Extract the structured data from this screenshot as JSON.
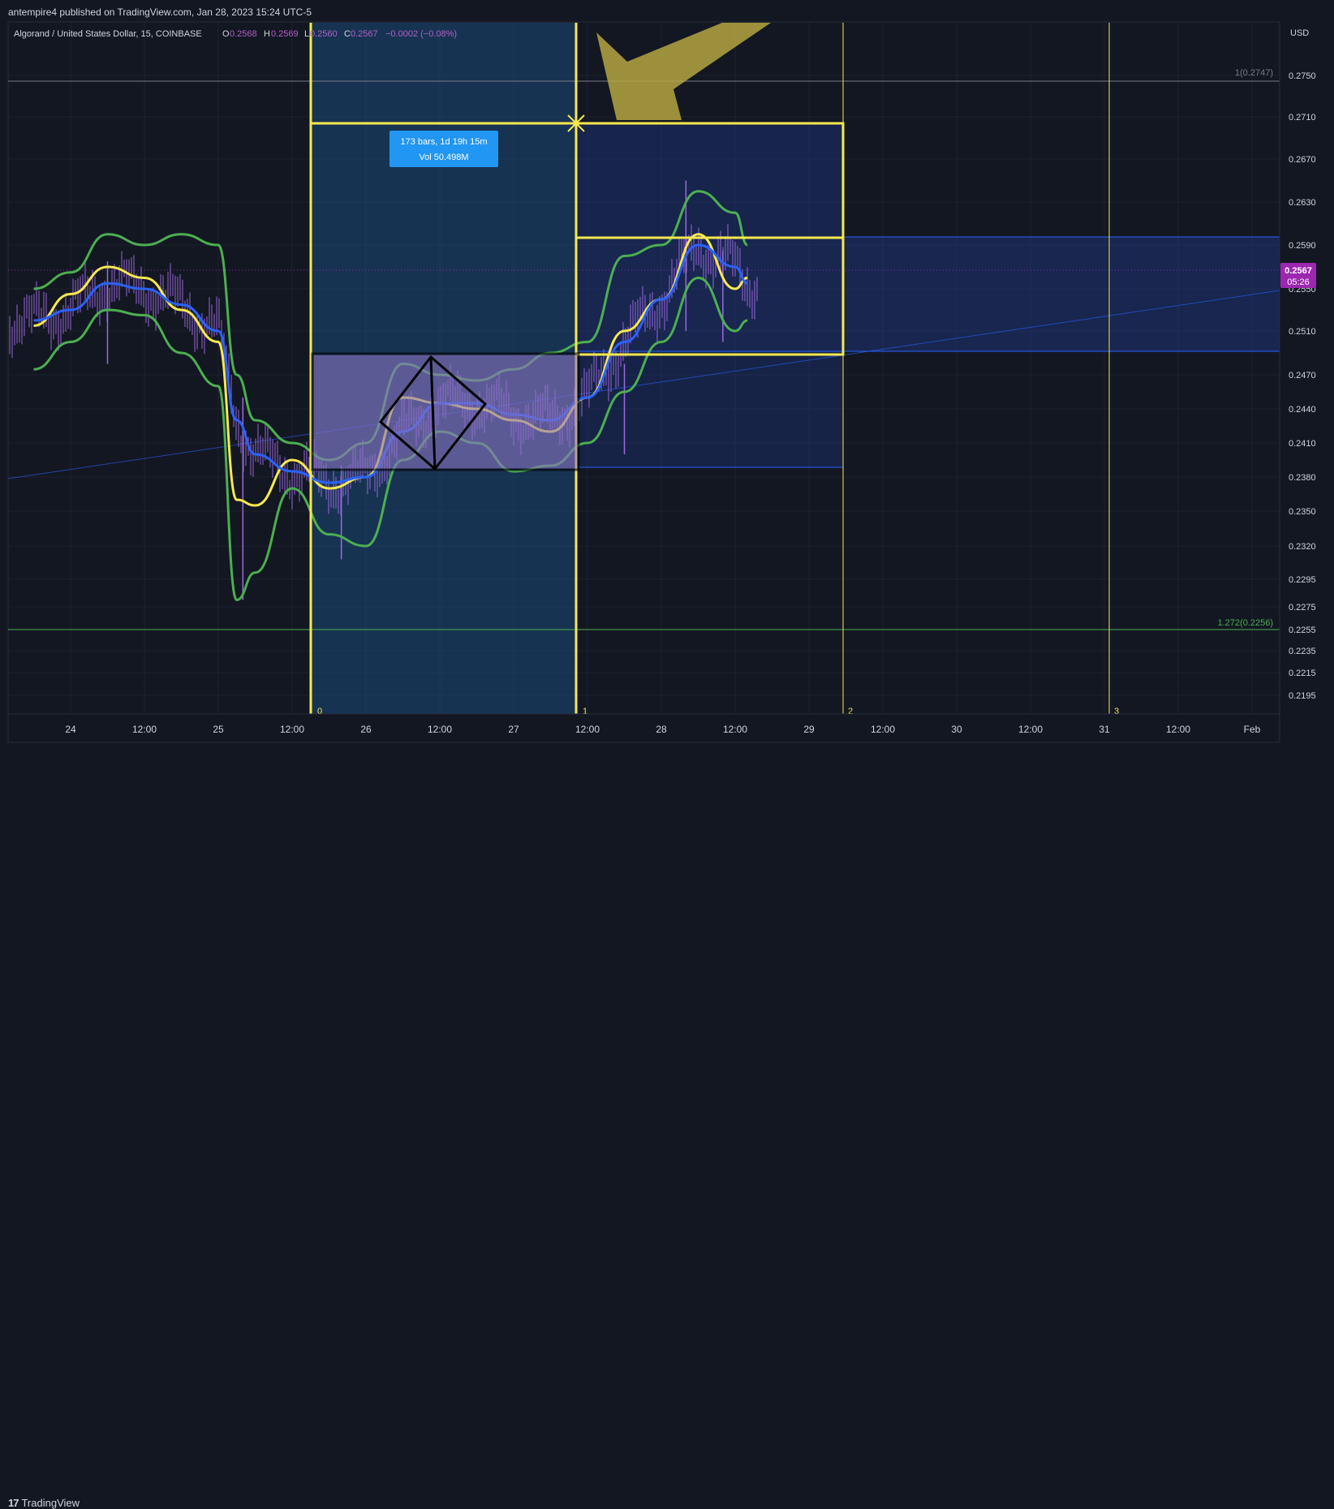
{
  "header": {
    "published_text": "antempire4 published on TradingView.com, Jan 28, 2023 15:24 UTC-5"
  },
  "footer": {
    "logo_mark": "17",
    "logo_text": "TradingView"
  },
  "legend": {
    "symbol": "Algorand / United States Dollar, 15, COINBASE",
    "o_label": "O",
    "o": "0.2568",
    "h_label": "H",
    "h": "0.2569",
    "l_label": "L",
    "l": "0.2560",
    "c_label": "C",
    "c": "0.2567",
    "change": "−0.0002 (−0.08%)"
  },
  "price_axis": {
    "currency": "USD",
    "current_price": "0.2567",
    "countdown": "05:26",
    "ticks": [
      "0.2750",
      "0.2710",
      "0.2670",
      "0.2630",
      "0.2590",
      "0.2550",
      "0.2510",
      "0.2470",
      "0.2440",
      "0.2410",
      "0.2380",
      "0.2350",
      "0.2320",
      "0.2295",
      "0.2275",
      "0.2255",
      "0.2235",
      "0.2215",
      "0.2195"
    ]
  },
  "time_axis": {
    "ticks": [
      "24",
      "12:00",
      "25",
      "12:00",
      "26",
      "12:00",
      "27",
      "12:00",
      "28",
      "12:00",
      "29",
      "12:00",
      "30",
      "12:00",
      "31",
      "12:00",
      "Feb"
    ]
  },
  "fib_labels": {
    "top": "1(0.2747)",
    "bottom": "1.272(0.2256)"
  },
  "cycle_labels": [
    "0",
    "1",
    "2",
    "3"
  ],
  "measure_box": {
    "line1": "173 bars, 1d 19h 15m",
    "line2": "Vol 50.498M"
  },
  "colors": {
    "background": "#131722",
    "grid": "#1e222d",
    "yellow": "#f7e84f",
    "green": "#4caf50",
    "blue_ma": "#2962ff",
    "candles": "#9c6ade",
    "price_badge": "#9c27b0",
    "measure_label": "#2196f3",
    "arrow": "#b5a642"
  },
  "chart_data": {
    "type": "line",
    "title": "Algorand / United States Dollar, 15, COINBASE",
    "xlabel": "",
    "ylabel": "USD",
    "ylim": [
      0.2185,
      0.2765
    ],
    "x": [
      "Jan 23 18:00",
      "Jan 24 00:00",
      "Jan 24 06:00",
      "Jan 24 12:00",
      "Jan 24 18:00",
      "Jan 25 00:00",
      "Jan 25 03:00",
      "Jan 25 06:00",
      "Jan 25 12:00",
      "Jan 25 18:00",
      "Jan 26 00:00",
      "Jan 26 06:00",
      "Jan 26 12:00",
      "Jan 26 18:00",
      "Jan 27 00:00",
      "Jan 27 06:00",
      "Jan 27 12:00",
      "Jan 27 18:00",
      "Jan 28 00:00",
      "Jan 28 06:00",
      "Jan 28 12:00",
      "Jan 28 14:00"
    ],
    "series": [
      {
        "values": [
          0.2515,
          0.2545,
          0.257,
          0.256,
          0.253,
          0.25,
          0.236,
          0.2355,
          0.2395,
          0.237,
          0.238,
          0.245,
          0.2445,
          0.244,
          0.243,
          0.242,
          0.245,
          0.251,
          0.254,
          0.26,
          0.255,
          0.256
        ]
      },
      {
        "values": [
          0.252,
          0.253,
          0.2555,
          0.255,
          0.2535,
          0.251,
          0.243,
          0.24,
          0.2385,
          0.2375,
          0.238,
          0.242,
          0.2445,
          0.2445,
          0.2435,
          0.243,
          0.245,
          0.25,
          0.254,
          0.259,
          0.257,
          0.2555
        ]
      },
      {
        "values": [
          0.255,
          0.2565,
          0.26,
          0.259,
          0.26,
          0.259,
          0.247,
          0.243,
          0.241,
          0.2395,
          0.241,
          0.248,
          0.247,
          0.2465,
          0.2475,
          0.249,
          0.25,
          0.258,
          0.259,
          0.264,
          0.262,
          0.259
        ]
      },
      {
        "values": [
          0.2475,
          0.25,
          0.253,
          0.2525,
          0.249,
          0.246,
          0.228,
          0.23,
          0.237,
          0.233,
          0.232,
          0.2395,
          0.242,
          0.241,
          0.2385,
          0.239,
          0.241,
          0.2455,
          0.25,
          0.256,
          0.251,
          0.252
        ]
      }
    ],
    "candles_high_low": {
      "x": [
        "Jan 24 06:00",
        "Jan 25 04:00",
        "Jan 25 20:00",
        "Jan 27 18:00",
        "Jan 28 04:00",
        "Jan 28 10:00"
      ],
      "high": [
        0.2575,
        0.245,
        0.239,
        0.248,
        0.265,
        0.2585
      ],
      "low": [
        0.248,
        0.228,
        0.231,
        0.24,
        0.251,
        0.25
      ]
    },
    "grid": true,
    "legend": "top-left"
  }
}
